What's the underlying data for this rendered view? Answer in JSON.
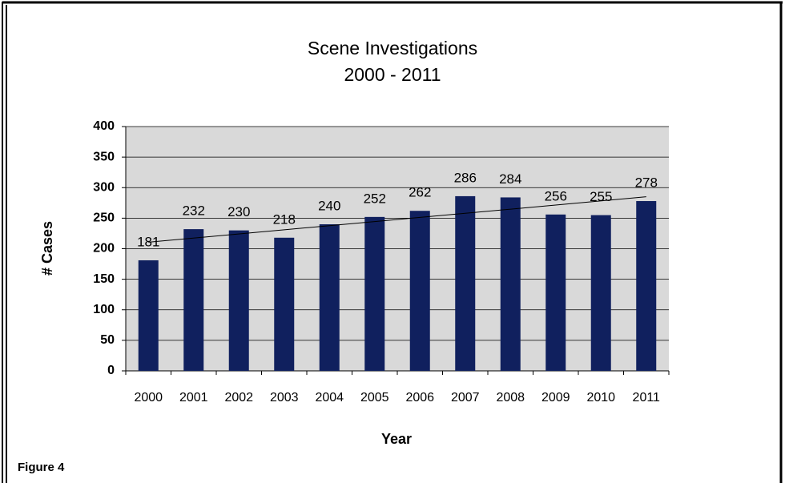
{
  "chart_data": {
    "type": "bar",
    "title": "Scene Investigations",
    "subtitle": "2000 - 2011",
    "x_label": "Year",
    "y_label": "# Cases",
    "figure_label": "Figure 4",
    "categories": [
      "2000",
      "2001",
      "2002",
      "2003",
      "2004",
      "2005",
      "2006",
      "2007",
      "2008",
      "2009",
      "2010",
      "2011"
    ],
    "values": [
      181,
      232,
      230,
      218,
      240,
      252,
      262,
      286,
      284,
      256,
      255,
      278
    ],
    "color": "#10205e",
    "ylim": [
      0,
      400
    ],
    "yticks": [
      0,
      50,
      100,
      150,
      200,
      250,
      300,
      350,
      400
    ],
    "grid": true,
    "data_labels": true,
    "trendline": "linear"
  }
}
